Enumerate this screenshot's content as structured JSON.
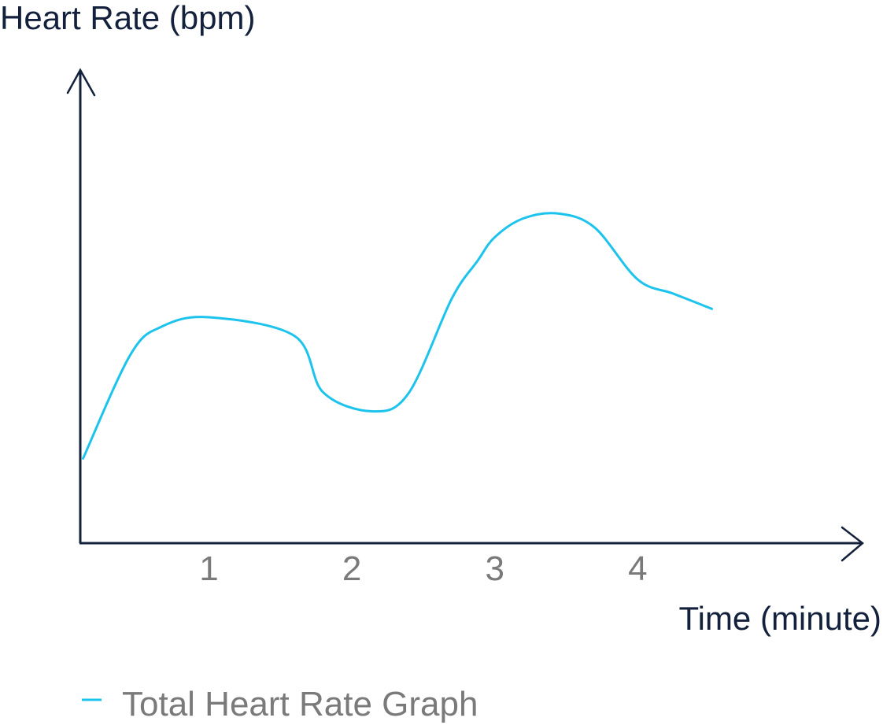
{
  "chart_data": {
    "type": "line",
    "title": "",
    "ylabel": "Heart Rate (bpm)",
    "xlabel": "Time (minute)",
    "x_ticks": [
      "1",
      "2",
      "3",
      "4"
    ],
    "xlim": [
      0.1,
      5.0
    ],
    "ylim": [
      0,
      100
    ],
    "y_ticks": [],
    "grid": false,
    "legend_position": "bottom-left",
    "series": [
      {
        "name": "Total Heart Rate Graph",
        "color": "#1cc3ec",
        "x": [
          0.12,
          0.45,
          0.67,
          1.0,
          1.6,
          1.8,
          2.15,
          2.4,
          2.7,
          2.88,
          3.0,
          3.2,
          3.45,
          3.7,
          4.0,
          4.25,
          4.5,
          4.5
        ],
        "y": [
          18,
          40,
          46,
          48,
          44,
          32,
          28,
          32,
          52,
          60,
          65,
          69,
          70,
          67,
          56,
          53,
          50,
          50
        ]
      }
    ]
  }
}
